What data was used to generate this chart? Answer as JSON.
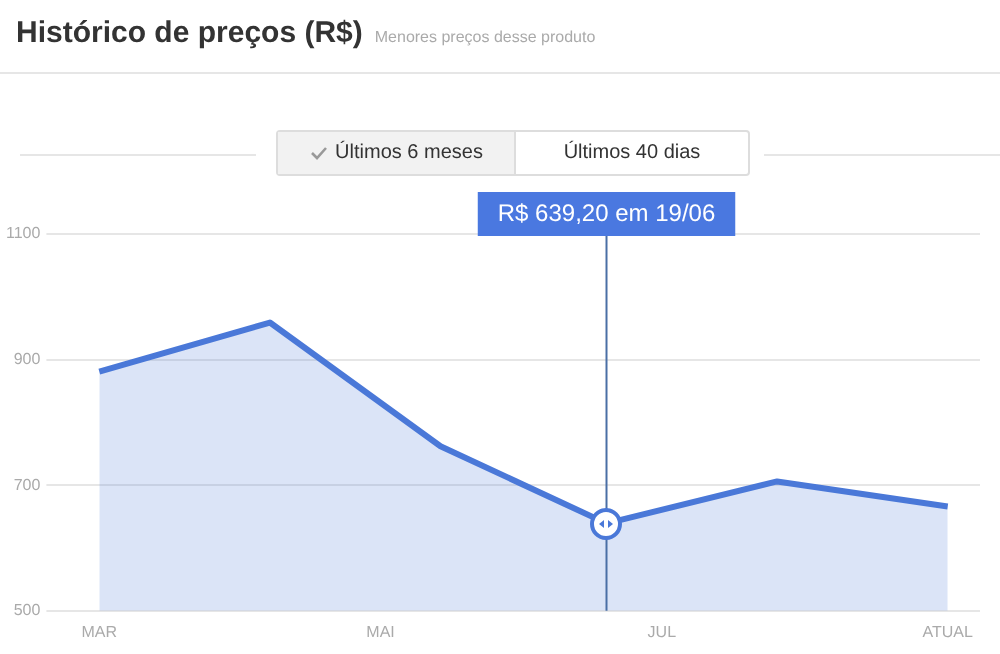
{
  "chart_data": {
    "type": "area",
    "title": "Histórico de preços (R$)",
    "subtitle": "Menores preços desse produto",
    "x": [
      "--03-01",
      "--04-07",
      "--05-14",
      "--06-19",
      "--07-26",
      "--09-01"
    ],
    "series": [
      {
        "color": "#4a78d8",
        "values": [
          881,
          959,
          762,
          639.2,
          706,
          666
        ]
      }
    ],
    "xlim": [
      "--02-22",
      "--09-08"
    ],
    "xticks": [
      {
        "value": "--03-01",
        "label": "MAR"
      },
      {
        "value": "--05-01",
        "label": "MAI"
      },
      {
        "value": "--07-01",
        "label": "JUL"
      },
      {
        "value": "--09-01",
        "label": "ATUAL"
      }
    ],
    "ylim": [
      500,
      1100
    ],
    "yticks": [
      500,
      700,
      900,
      1100
    ],
    "grid": "y",
    "legend": false,
    "marker": "none",
    "line_style": "solid",
    "ref_lines": [
      {
        "axis": "x",
        "value": "--06-19",
        "color": "#4a6fa5"
      }
    ],
    "annotations": [
      "R$ 639,20 em 19/06",
      "Últimos 6 meses",
      "Últimos 40 dias"
    ]
  }
}
